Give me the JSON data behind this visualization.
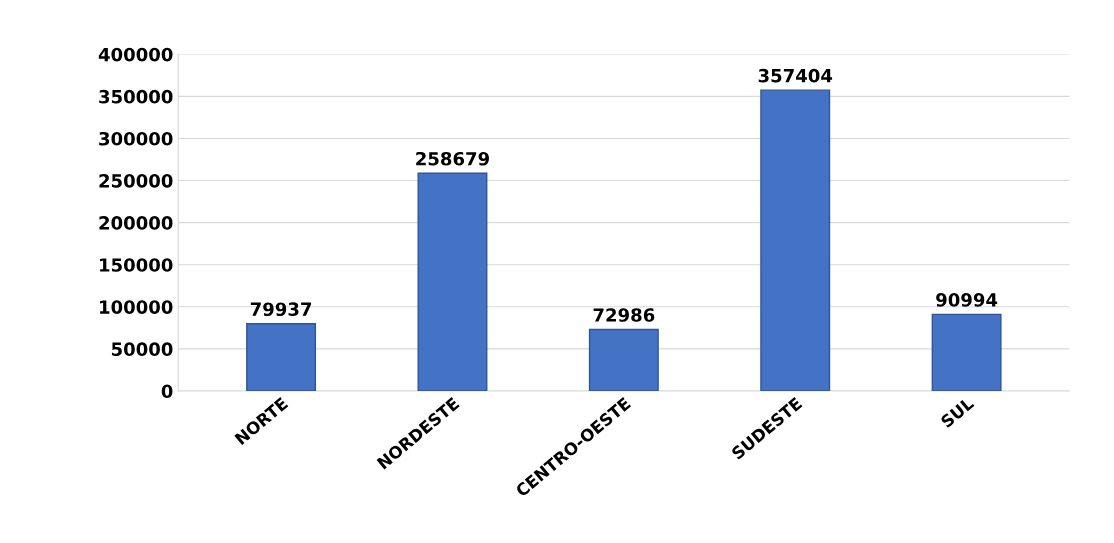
{
  "chart_data": {
    "type": "bar",
    "categories": [
      "NORTE",
      "NORDESTE",
      "CENTRO-OESTE",
      "SUDESTE",
      "SUL"
    ],
    "values": [
      79937,
      258679,
      72986,
      357404,
      90994
    ],
    "color": "#4472c4",
    "ylim": [
      0,
      400000
    ],
    "yticks": [
      0,
      50000,
      100000,
      150000,
      200000,
      250000,
      300000,
      350000,
      400000
    ],
    "grid": "y",
    "data_labels": true
  }
}
